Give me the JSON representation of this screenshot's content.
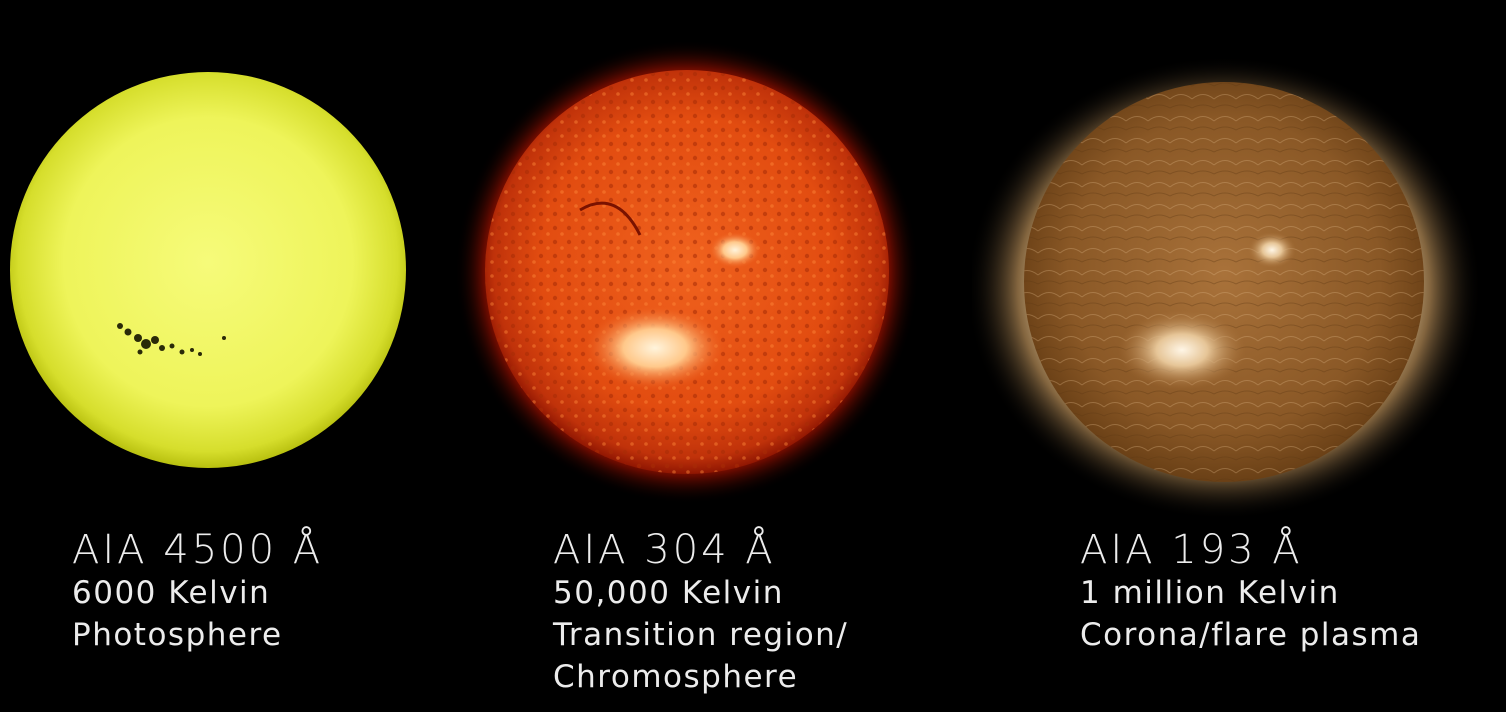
{
  "panels": [
    {
      "title": "AIA 4500 Å",
      "lines": [
        "6000 Kelvin",
        "Photosphere"
      ],
      "colors": {
        "core": "#f6fb7a",
        "mid": "#e9f24a",
        "edge": "#b8c00f"
      }
    },
    {
      "title": "AIA 304 Å",
      "lines": [
        "50,000 Kelvin",
        "Transition region/",
        "Chromosphere"
      ],
      "colors": {
        "core": "#f0621e",
        "mid": "#d8400a",
        "edge": "#8f1602",
        "glow": "#ff2a00",
        "active": "#ffe2b0"
      }
    },
    {
      "title": "AIA 193 Å",
      "lines": [
        "1 million Kelvin",
        "Corona/flare plasma"
      ],
      "colors": {
        "core": "#a9723a",
        "mid": "#8a5826",
        "edge": "#5a3612",
        "glow": "#f3d9b0",
        "active": "#fff6e6"
      }
    }
  ]
}
